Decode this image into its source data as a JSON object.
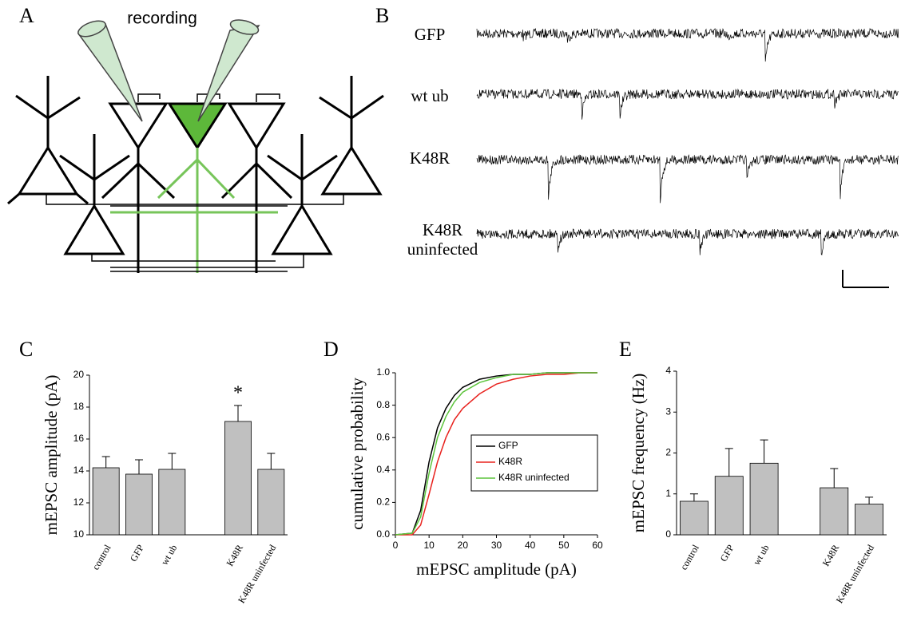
{
  "diagram": {
    "label": "A",
    "annotation": "recording"
  },
  "traces": {
    "label": "B",
    "names": [
      "GFP",
      "wt ub",
      "K48R",
      "K48R uninfected"
    ]
  },
  "chart_data": [
    {
      "type": "bar",
      "panel_label": "C",
      "ylabel": "mEPSC amplitude (pA)",
      "categories": [
        "control",
        "GFP",
        "wt ub",
        null,
        "K48R",
        "K48R uninfected"
      ],
      "values": [
        14.2,
        13.8,
        14.1,
        null,
        17.1,
        14.1
      ],
      "errors": [
        0.7,
        0.9,
        1.0,
        null,
        1.0,
        1.0
      ],
      "annotations": [
        null,
        null,
        null,
        null,
        "*",
        null
      ],
      "color": "#c0c0c0",
      "ylim": [
        10,
        20
      ],
      "yticks": [
        10,
        12,
        14,
        16,
        18,
        20
      ]
    },
    {
      "type": "line",
      "panel_label": "D",
      "xlabel": "mEPSC amplitude (pA)",
      "ylabel": "cumulative probability",
      "x": [
        0,
        5,
        7.5,
        10,
        12.5,
        15,
        17.5,
        20,
        25,
        30,
        35,
        40,
        45,
        50,
        55,
        60
      ],
      "series": [
        {
          "name": "GFP",
          "color": "#000000",
          "values": [
            0,
            0.01,
            0.15,
            0.45,
            0.66,
            0.78,
            0.86,
            0.91,
            0.96,
            0.98,
            0.99,
            0.99,
            1.0,
            1.0,
            1.0,
            1.0
          ]
        },
        {
          "name": "K48R",
          "color": "#e8231f",
          "values": [
            0,
            0,
            0.06,
            0.25,
            0.45,
            0.6,
            0.71,
            0.78,
            0.87,
            0.93,
            0.96,
            0.98,
            0.99,
            0.99,
            1.0,
            1.0
          ]
        },
        {
          "name": "K48R uninfected",
          "color": "#5cc43c",
          "values": [
            0,
            0.01,
            0.11,
            0.38,
            0.6,
            0.73,
            0.82,
            0.88,
            0.94,
            0.97,
            0.99,
            0.99,
            1.0,
            1.0,
            1.0,
            1.0
          ]
        }
      ],
      "xlim": [
        0,
        60
      ],
      "xticks": [
        0,
        10,
        20,
        30,
        40,
        50,
        60
      ],
      "ylim": [
        0,
        1
      ],
      "yticks": [
        {
          "value": 0,
          "label": "0.0"
        },
        {
          "value": 0.2,
          "label": "0.2"
        },
        {
          "value": 0.4,
          "label": "0.4"
        },
        {
          "value": 0.6,
          "label": "0.6"
        },
        {
          "value": 0.8,
          "label": "0.8"
        },
        {
          "value": 1,
          "label": "1.0"
        }
      ],
      "legend": "lower right"
    },
    {
      "type": "bar",
      "panel_label": "E",
      "ylabel": "mEPSC frequency (Hz)",
      "categories": [
        "control",
        "GFP",
        "wt ub",
        null,
        "K48R",
        "K48R uninfected"
      ],
      "values": [
        0.82,
        1.43,
        1.75,
        null,
        1.15,
        0.75
      ],
      "errors": [
        0.18,
        0.68,
        0.57,
        null,
        0.47,
        0.17
      ],
      "annotations": [
        null,
        null,
        null,
        null,
        null,
        null
      ],
      "color": "#c0c0c0",
      "ylim": [
        0,
        4
      ],
      "yticks": [
        0,
        1,
        2,
        3,
        4
      ]
    }
  ]
}
